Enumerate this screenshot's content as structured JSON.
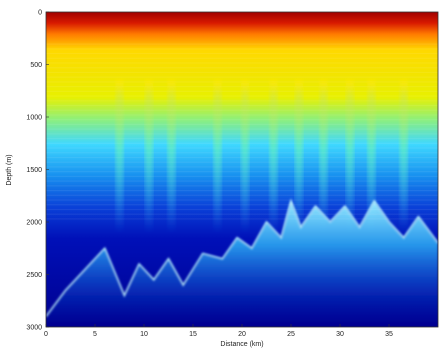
{
  "chart_data": {
    "type": "heatmap",
    "title": "",
    "xlabel": "Distance (km)",
    "ylabel": "Depth (m)",
    "xlim": [
      0,
      40
    ],
    "ylim": [
      0,
      3000
    ],
    "y_inverted": true,
    "xticks": [
      0,
      5,
      10,
      15,
      20,
      25,
      30,
      35
    ],
    "xtick_labels": [
      "0",
      "5",
      "10",
      "15",
      "20",
      "25",
      "30",
      "35"
    ],
    "yticks": [
      0,
      500,
      1000,
      1500,
      2000,
      2500,
      3000
    ],
    "ytick_labels": [
      "0",
      "500",
      "1000",
      "1500",
      "2000",
      "2500",
      "3000"
    ],
    "colormap": "jet",
    "colors": {
      "low": "#00008f",
      "mid": "#2fbfff",
      "high": "#ffd800",
      "max": "#a00000"
    },
    "description_values": {
      "surface_band_depth_m": [
        0,
        200
      ],
      "yellow_band_depth_m": [
        200,
        950
      ],
      "bright_bottom_profile": {
        "x_km": [
          0,
          2,
          4,
          6,
          8,
          9.5,
          11,
          12.5,
          14,
          16,
          18,
          19.5,
          21,
          22.5,
          24,
          25,
          26,
          27.5,
          29,
          30.5,
          32,
          33.5,
          35,
          36.5,
          38,
          40
        ],
        "depth_m": [
          2900,
          2650,
          2450,
          2250,
          2700,
          2400,
          2550,
          2350,
          2600,
          2300,
          2350,
          2150,
          2250,
          2000,
          2150,
          1800,
          2050,
          1850,
          2000,
          1850,
          2050,
          1800,
          2000,
          2150,
          1950,
          2200
        ]
      },
      "plume_x_km": [
        7.5,
        10.5,
        12.8,
        17.5,
        20.3,
        23.2,
        25.8,
        28.3,
        31,
        33.2,
        36.5
      ]
    }
  }
}
